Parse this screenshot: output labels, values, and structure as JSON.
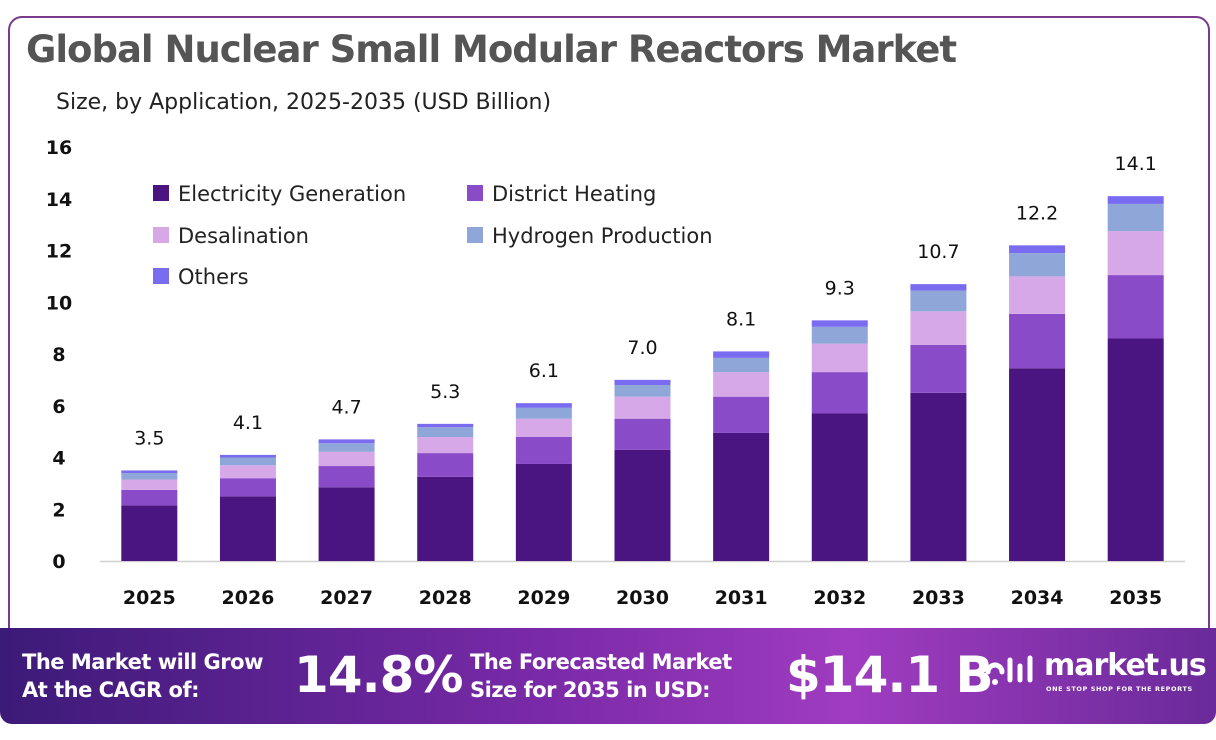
{
  "chart_data": {
    "type": "bar",
    "stacked": true,
    "title": "Global Nuclear Small Modular Reactors Market",
    "subtitle": "Size, by Application, 2025-2035 (USD Billion)",
    "categories": [
      "2025",
      "2026",
      "2027",
      "2028",
      "2029",
      "2030",
      "2031",
      "2032",
      "2033",
      "2034",
      "2035"
    ],
    "series": [
      {
        "name": "Electricity Generation",
        "color": "#4a1580",
        "values": [
          2.15,
          2.5,
          2.85,
          3.25,
          3.75,
          4.3,
          4.95,
          5.7,
          6.5,
          7.45,
          8.6
        ]
      },
      {
        "name": "District Heating",
        "color": "#8a4bc8",
        "values": [
          0.6,
          0.7,
          0.82,
          0.92,
          1.05,
          1.2,
          1.4,
          1.6,
          1.85,
          2.1,
          2.45
        ]
      },
      {
        "name": "Desalination",
        "color": "#d6a8e8",
        "values": [
          0.4,
          0.5,
          0.55,
          0.62,
          0.7,
          0.85,
          0.95,
          1.1,
          1.3,
          1.45,
          1.7
        ]
      },
      {
        "name": "Hydrogen Production",
        "color": "#8fa6d8",
        "values": [
          0.25,
          0.3,
          0.33,
          0.38,
          0.42,
          0.45,
          0.55,
          0.65,
          0.8,
          0.9,
          1.05
        ]
      },
      {
        "name": "Others",
        "color": "#7a6cf0",
        "values": [
          0.1,
          0.1,
          0.15,
          0.13,
          0.18,
          0.2,
          0.25,
          0.25,
          0.25,
          0.3,
          0.3
        ]
      }
    ],
    "totals": [
      "3.5",
      "4.1",
      "4.7",
      "5.3",
      "6.1",
      "7.0",
      "8.1",
      "9.3",
      "10.7",
      "12.2",
      "14.1"
    ],
    "yticks": [
      0,
      2,
      4,
      6,
      8,
      10,
      12,
      14,
      16
    ],
    "ylim": [
      0,
      16
    ],
    "xlabel": "",
    "ylabel": "",
    "grid": false,
    "legend_position": "top-left"
  },
  "footer": {
    "cagr_label_line1": "The Market will Grow",
    "cagr_label_line2": "At the CAGR of:",
    "cagr_value": "14.8%",
    "forecast_label_line1": "The Forecasted Market",
    "forecast_label_line2": "Size for 2035 in USD:",
    "forecast_value": "$14.1 B",
    "brand_name": "market.us",
    "brand_tagline": "ONE STOP SHOP FOR THE REPORTS"
  }
}
